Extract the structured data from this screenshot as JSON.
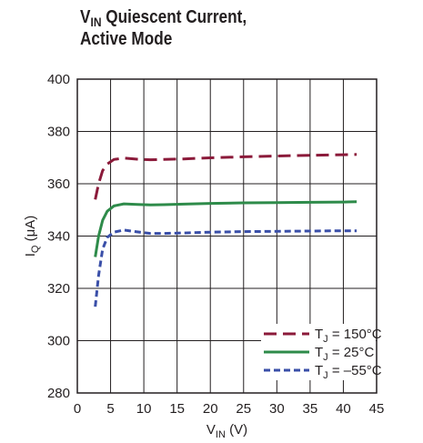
{
  "title": {
    "line1_main": "V",
    "line1_sub": "IN",
    "line1_rest": " Quiescent Current,",
    "line2": "Active Mode"
  },
  "chart_data": {
    "type": "line",
    "xlabel_main": "V",
    "xlabel_sub": "IN",
    "xlabel_unit": " (V)",
    "ylabel_main": "I",
    "ylabel_sub": "Q",
    "ylabel_unit": " (μA)",
    "xlim": [
      0,
      45
    ],
    "ylim": [
      280,
      400
    ],
    "x_ticks": [
      "0",
      "5",
      "10",
      "15",
      "20",
      "25",
      "30",
      "35",
      "40",
      "45"
    ],
    "y_ticks": [
      "280",
      "300",
      "320",
      "340",
      "360",
      "380",
      "400"
    ],
    "grid": true,
    "legend_position": "bottom-right",
    "series": [
      {
        "name_main": "T",
        "name_sub": "J",
        "name_rest": " = 150°C",
        "color": "#8b1a3a",
        "style": "long-dash",
        "x": [
          2.7,
          3.2,
          3.8,
          4.5,
          5.5,
          7,
          9,
          11,
          13,
          16,
          20,
          25,
          30,
          35,
          40,
          42
        ],
        "y": [
          354,
          360,
          365,
          367.5,
          369.3,
          369.8,
          369.4,
          369.2,
          369.3,
          369.5,
          369.9,
          370.3,
          370.6,
          370.9,
          371.1,
          371.2
        ]
      },
      {
        "name_main": "T",
        "name_sub": "J",
        "name_rest": " = 25°C",
        "color": "#2e8b4a",
        "style": "solid",
        "x": [
          2.7,
          3.2,
          3.8,
          4.5,
          5.5,
          7,
          9,
          11,
          13,
          16,
          20,
          25,
          30,
          35,
          40,
          42
        ],
        "y": [
          332,
          340,
          346,
          349.5,
          351.5,
          352.3,
          352.1,
          351.9,
          352.0,
          352.2,
          352.5,
          352.7,
          352.8,
          352.9,
          353.0,
          353.1
        ]
      },
      {
        "name_main": "T",
        "name_sub": "J",
        "name_rest": " = –55°C",
        "color": "#3a4fa8",
        "style": "short-dash",
        "x": [
          2.7,
          3.2,
          3.8,
          4.5,
          5.5,
          7,
          9,
          11,
          13,
          16,
          20,
          25,
          30,
          35,
          40,
          42
        ],
        "y": [
          313,
          325,
          335,
          339.5,
          341.5,
          342.3,
          341.6,
          341.0,
          341.0,
          341.2,
          341.5,
          341.7,
          341.8,
          341.9,
          342.0,
          342.0
        ]
      }
    ]
  }
}
